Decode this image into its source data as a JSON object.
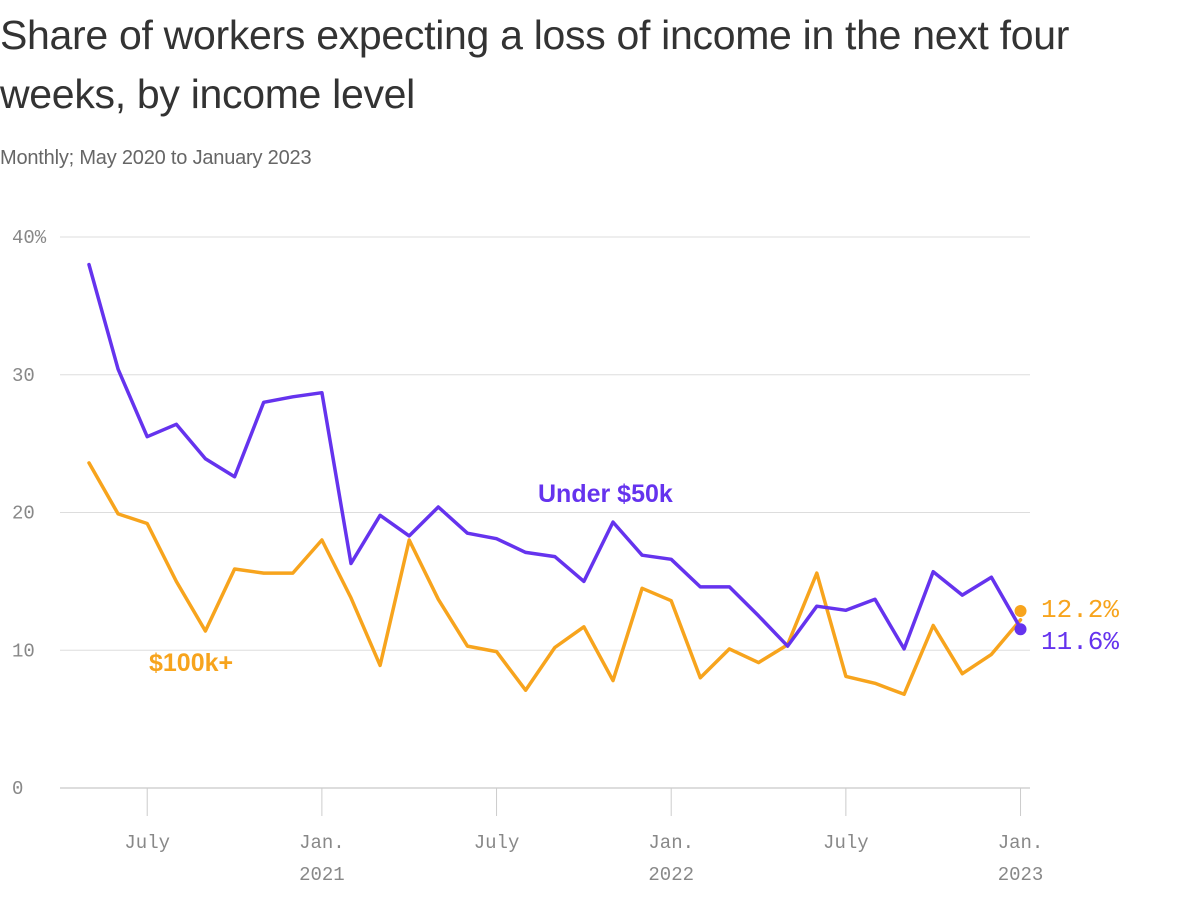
{
  "chart_data": {
    "type": "line",
    "title": "Share of workers expecting a loss of income in the next four weeks, by income level",
    "subtitle": "Monthly; May 2020 to January 2023",
    "y_ticks": [
      "40%",
      "30",
      "20",
      "10",
      "0"
    ],
    "y_tick_values": [
      40,
      30,
      20,
      10,
      0
    ],
    "ylim": [
      0,
      40
    ],
    "grid": "horizontal",
    "x_ticks": [
      {
        "date": "2020-07",
        "label": "July",
        "sublabel": ""
      },
      {
        "date": "2021-01",
        "label": "Jan.",
        "sublabel": "2021"
      },
      {
        "date": "2021-07",
        "label": "July",
        "sublabel": ""
      },
      {
        "date": "2022-01",
        "label": "Jan.",
        "sublabel": "2022"
      },
      {
        "date": "2022-07",
        "label": "July",
        "sublabel": ""
      },
      {
        "date": "2023-01",
        "label": "Jan.",
        "sublabel": "2023"
      }
    ],
    "x": [
      "2020-05",
      "2020-06",
      "2020-07",
      "2020-08",
      "2020-09",
      "2020-10",
      "2020-11",
      "2020-12",
      "2021-01",
      "2021-02",
      "2021-03",
      "2021-04",
      "2021-05",
      "2021-06",
      "2021-07",
      "2021-08",
      "2021-09",
      "2021-10",
      "2021-11",
      "2021-12",
      "2022-01",
      "2022-02",
      "2022-03",
      "2022-04",
      "2022-05",
      "2022-06",
      "2022-07",
      "2022-08",
      "2022-09",
      "2022-10",
      "2022-11",
      "2022-12",
      "2023-01"
    ],
    "series": [
      {
        "name": "Under $50k",
        "color": "#6533ee",
        "values": [
          38.0,
          30.4,
          25.5,
          26.4,
          23.9,
          22.6,
          28.0,
          28.4,
          28.7,
          16.3,
          19.8,
          18.3,
          20.4,
          18.5,
          18.1,
          17.1,
          16.8,
          15.0,
          19.3,
          16.9,
          16.6,
          14.6,
          14.6,
          12.5,
          10.3,
          13.2,
          12.9,
          13.7,
          10.1,
          15.7,
          14.0,
          15.3,
          11.6
        ]
      },
      {
        "name": "$100k+",
        "color": "#f7a41d",
        "values": [
          23.6,
          19.9,
          19.2,
          15.0,
          11.4,
          15.9,
          15.6,
          15.6,
          18.0,
          13.8,
          8.9,
          18.0,
          13.7,
          10.3,
          9.9,
          7.1,
          10.2,
          11.7,
          7.8,
          14.5,
          13.6,
          8.0,
          10.1,
          9.1,
          10.4,
          15.6,
          8.1,
          7.6,
          6.8,
          11.8,
          8.3,
          9.7,
          12.2
        ]
      }
    ],
    "end_labels": [
      {
        "text": "12.2%",
        "series": "$100k+",
        "color": "#f7a41d"
      },
      {
        "text": "11.6%",
        "series": "Under $50k",
        "color": "#6533ee"
      }
    ]
  }
}
